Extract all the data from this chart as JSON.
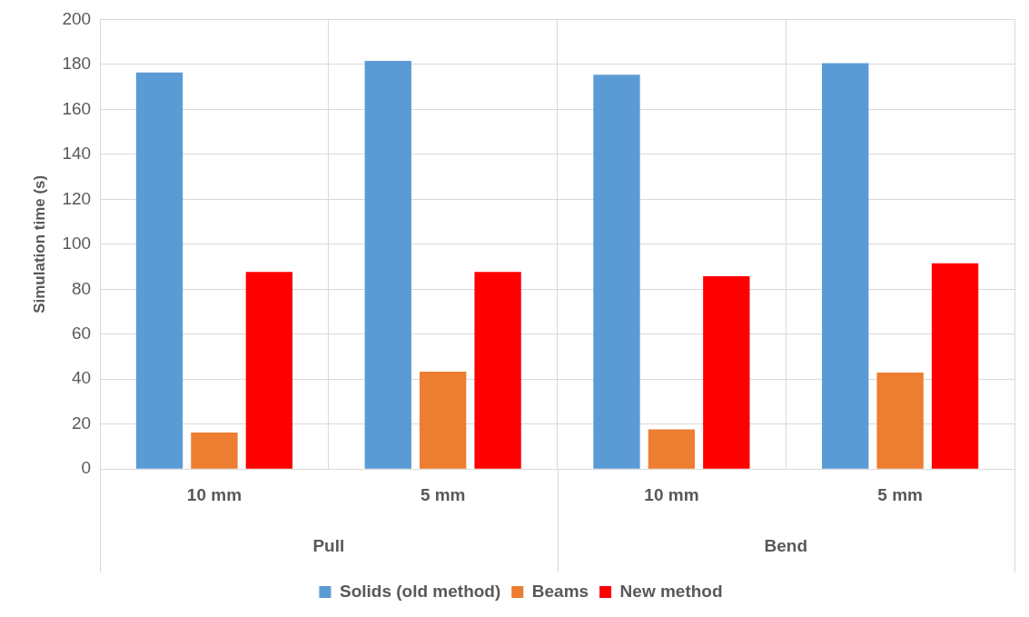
{
  "chart_data": {
    "type": "bar",
    "ylabel": "Simulation time (s)",
    "categories": [
      "10 mm",
      "5 mm",
      "10 mm",
      "5 mm"
    ],
    "annotations": [
      "Pull",
      "Bend"
    ],
    "series": [
      {
        "name": "Solids (old method)",
        "color": "#5b9bd5",
        "values": [
          176.4,
          181.6,
          175.4,
          180.6
        ]
      },
      {
        "name": "Beams",
        "color": "#ed7d31",
        "values": [
          16.2,
          43.3,
          17.7,
          42.9
        ]
      },
      {
        "name": "New method",
        "color": "#ff0000",
        "values": [
          87.7,
          87.7,
          85.8,
          91.5
        ]
      }
    ],
    "ylim": [
      0,
      200
    ],
    "yticks": [
      0,
      20,
      40,
      60,
      80,
      100,
      120,
      140,
      160,
      180,
      200
    ],
    "grid": true,
    "legend": "bottom"
  }
}
